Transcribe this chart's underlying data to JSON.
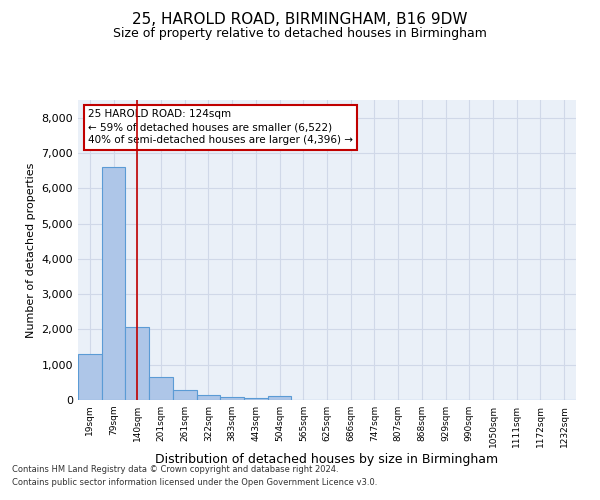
{
  "title1": "25, HAROLD ROAD, BIRMINGHAM, B16 9DW",
  "title2": "Size of property relative to detached houses in Birmingham",
  "xlabel": "Distribution of detached houses by size in Birmingham",
  "ylabel": "Number of detached properties",
  "categories": [
    "19sqm",
    "79sqm",
    "140sqm",
    "201sqm",
    "261sqm",
    "322sqm",
    "383sqm",
    "443sqm",
    "504sqm",
    "565sqm",
    "625sqm",
    "686sqm",
    "747sqm",
    "807sqm",
    "868sqm",
    "929sqm",
    "990sqm",
    "1050sqm",
    "1111sqm",
    "1172sqm",
    "1232sqm"
  ],
  "bar_values": [
    1300,
    6600,
    2080,
    650,
    290,
    140,
    90,
    70,
    100,
    0,
    0,
    0,
    0,
    0,
    0,
    0,
    0,
    0,
    0,
    0,
    0
  ],
  "bar_color": "#aec6e8",
  "bar_edge_color": "#5b9bd5",
  "vline_x": 2,
  "vline_color": "#c00000",
  "ylim": [
    0,
    8500
  ],
  "yticks": [
    0,
    1000,
    2000,
    3000,
    4000,
    5000,
    6000,
    7000,
    8000
  ],
  "annotation_title": "25 HAROLD ROAD: 124sqm",
  "annotation_line1": "← 59% of detached houses are smaller (6,522)",
  "annotation_line2": "40% of semi-detached houses are larger (4,396) →",
  "annotation_box_color": "#ffffff",
  "annotation_box_edgecolor": "#c00000",
  "footnote1": "Contains HM Land Registry data © Crown copyright and database right 2024.",
  "footnote2": "Contains public sector information licensed under the Open Government Licence v3.0.",
  "grid_color": "#d0d8e8",
  "bg_color": "#eaf0f8",
  "title1_fontsize": 11,
  "title2_fontsize": 9,
  "ylabel_fontsize": 8,
  "xlabel_fontsize": 9
}
